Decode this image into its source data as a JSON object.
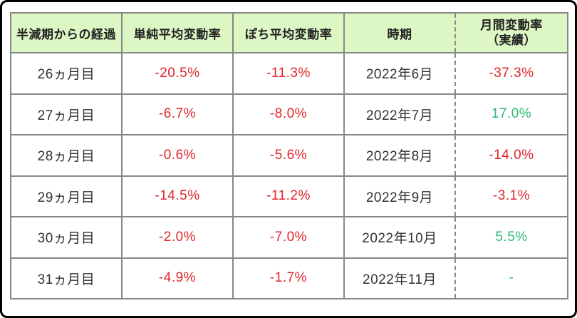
{
  "colors": {
    "red": "#e0262b",
    "green": "#2bb673",
    "header_bg": "#dcf6c4",
    "grid_border": "#878787",
    "text": "#333333",
    "frame": "#000000"
  },
  "chart_data": {
    "type": "table",
    "title": "",
    "legend": "none",
    "columns": [
      "半減期からの経過",
      "単純平均変動率",
      "ぽち平均変動率",
      "時期",
      "月間変動率（実績）"
    ],
    "header_col5_line1": "月間変動率",
    "header_col5_line2": "（実績）",
    "value_columns_color": "red",
    "rows": [
      {
        "elapsed": "26ヵ月目",
        "simple_avg": "-20.5%",
        "pochi_avg": "-11.3%",
        "period": "2022年6月",
        "monthly_actual": "-37.3%",
        "monthly_actual_color": "red"
      },
      {
        "elapsed": "27ヵ月目",
        "simple_avg": "-6.7%",
        "pochi_avg": "-8.0%",
        "period": "2022年7月",
        "monthly_actual": "17.0%",
        "monthly_actual_color": "green"
      },
      {
        "elapsed": "28ヵ月目",
        "simple_avg": "-0.6%",
        "pochi_avg": "-5.6%",
        "period": "2022年8月",
        "monthly_actual": "-14.0%",
        "monthly_actual_color": "red"
      },
      {
        "elapsed": "29ヵ月目",
        "simple_avg": "-14.5%",
        "pochi_avg": "-11.2%",
        "period": "2022年9月",
        "monthly_actual": "-3.1%",
        "monthly_actual_color": "red"
      },
      {
        "elapsed": "30ヵ月目",
        "simple_avg": "-2.0%",
        "pochi_avg": "-7.0%",
        "period": "2022年10月",
        "monthly_actual": "5.5%",
        "monthly_actual_color": "green"
      },
      {
        "elapsed": "31ヵ月目",
        "simple_avg": "-4.9%",
        "pochi_avg": "-1.7%",
        "period": "2022年11月",
        "monthly_actual": "-",
        "monthly_actual_color": "green"
      }
    ]
  }
}
